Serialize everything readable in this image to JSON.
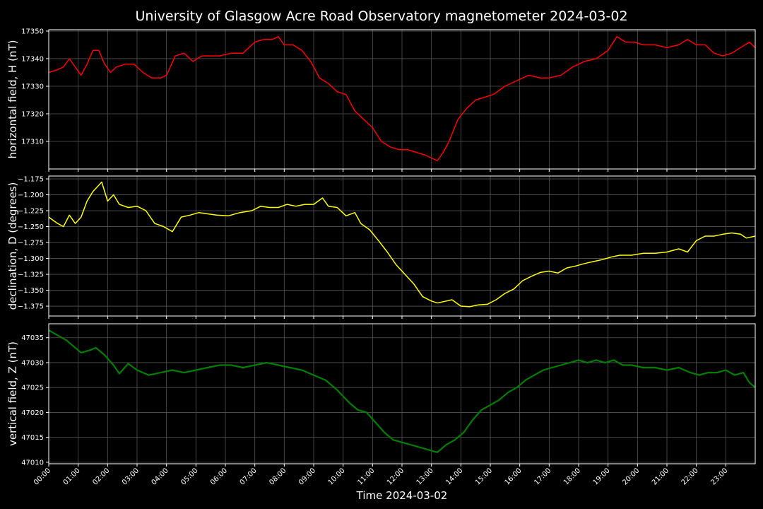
{
  "chart_data": {
    "type": "line",
    "title": "University of Glasgow Acre Road Observatory magnetometer 2024-03-02",
    "xlabel": "Time 2024-03-02",
    "x_unit": "hours",
    "x_ticks": [
      "00:00",
      "01:00",
      "02:00",
      "03:00",
      "04:00",
      "05:00",
      "06:00",
      "07:00",
      "08:00",
      "09:00",
      "10:00",
      "11:00",
      "12:00",
      "13:00",
      "14:00",
      "15:00",
      "16:00",
      "17:00",
      "18:00",
      "19:00",
      "20:00",
      "21:00",
      "22:00",
      "23:00"
    ],
    "xlim": [
      0,
      24
    ],
    "grid": true,
    "panels": [
      {
        "ylabel": "horizontal field, H (nT)",
        "color": "#ff0000",
        "ylim": [
          17300,
          17350.5
        ],
        "yticks": [
          17310,
          17320,
          17330,
          17340,
          17350
        ],
        "ytick_labels": [
          "17310",
          "17320",
          "17330",
          "17340",
          "17350"
        ],
        "x": [
          0,
          0.3,
          0.5,
          0.7,
          0.9,
          1.1,
          1.3,
          1.5,
          1.7,
          1.9,
          2.1,
          2.3,
          2.6,
          2.9,
          3.2,
          3.5,
          3.8,
          4.0,
          4.3,
          4.6,
          4.9,
          5.2,
          5.5,
          5.8,
          6.2,
          6.6,
          7.0,
          7.3,
          7.6,
          7.8,
          8.0,
          8.3,
          8.6,
          8.9,
          9.2,
          9.5,
          9.8,
          10.1,
          10.4,
          10.7,
          11.0,
          11.3,
          11.6,
          11.9,
          12.2,
          12.5,
          12.8,
          13.0,
          13.2,
          13.4,
          13.6,
          13.9,
          14.2,
          14.5,
          14.8,
          15.1,
          15.5,
          15.9,
          16.3,
          16.7,
          17.0,
          17.4,
          17.8,
          18.2,
          18.6,
          19.0,
          19.3,
          19.6,
          19.9,
          20.2,
          20.6,
          21.0,
          21.4,
          21.7,
          22.0,
          22.3,
          22.6,
          22.9,
          23.2,
          23.5,
          23.8,
          24.0
        ],
        "values": [
          17335,
          17336,
          17337,
          17340,
          17337,
          17334,
          17338,
          17343,
          17343,
          17338,
          17335,
          17337,
          17338,
          17338,
          17335,
          17333,
          17333,
          17334,
          17341,
          17342,
          17339,
          17341,
          17341,
          17341,
          17342,
          17342,
          17346,
          17347,
          17347,
          17348,
          17345,
          17345,
          17343,
          17339,
          17333,
          17331,
          17328,
          17327,
          17321,
          17318,
          17315,
          17310,
          17308,
          17307,
          17307,
          17306,
          17305,
          17304,
          17303,
          17306,
          17310,
          17318,
          17322,
          17325,
          17326,
          17327,
          17330,
          17332,
          17334,
          17333,
          17333,
          17334,
          17337,
          17339,
          17340,
          17343,
          17348,
          17346,
          17346,
          17345,
          17345,
          17344,
          17345,
          17347,
          17345,
          17345,
          17342,
          17341,
          17342,
          17344,
          17346,
          17344
        ]
      },
      {
        "ylabel": "declination, D (degrees)",
        "color": "#ffff00",
        "ylim": [
          -1.3905,
          -1.1705
        ],
        "yticks": [
          -1.375,
          -1.35,
          -1.325,
          -1.3,
          -1.275,
          -1.25,
          -1.225,
          -1.2,
          -1.175
        ],
        "ytick_labels": [
          "−1.375",
          "−1.350",
          "−1.325",
          "−1.300",
          "−1.275",
          "−1.250",
          "−1.225",
          "−1.200",
          "−1.175"
        ],
        "x": [
          0,
          0.3,
          0.5,
          0.7,
          0.9,
          1.1,
          1.3,
          1.5,
          1.8,
          2.0,
          2.2,
          2.4,
          2.7,
          3.0,
          3.3,
          3.6,
          3.9,
          4.2,
          4.5,
          4.8,
          5.1,
          5.4,
          5.7,
          6.1,
          6.5,
          6.9,
          7.2,
          7.5,
          7.8,
          8.1,
          8.4,
          8.7,
          9.0,
          9.3,
          9.5,
          9.8,
          10.1,
          10.4,
          10.6,
          10.9,
          11.2,
          11.5,
          11.8,
          12.1,
          12.4,
          12.7,
          13.0,
          13.2,
          13.4,
          13.7,
          14.0,
          14.3,
          14.6,
          14.9,
          15.2,
          15.5,
          15.8,
          16.1,
          16.4,
          16.7,
          17.0,
          17.3,
          17.6,
          17.9,
          18.2,
          18.5,
          18.8,
          19.1,
          19.4,
          19.8,
          20.2,
          20.6,
          21.0,
          21.4,
          21.7,
          22.0,
          22.3,
          22.6,
          22.9,
          23.2,
          23.5,
          23.7,
          24.0
        ],
        "values": [
          -1.235,
          -1.245,
          -1.25,
          -1.232,
          -1.245,
          -1.235,
          -1.21,
          -1.195,
          -1.18,
          -1.21,
          -1.2,
          -1.215,
          -1.22,
          -1.218,
          -1.225,
          -1.245,
          -1.25,
          -1.258,
          -1.235,
          -1.232,
          -1.228,
          -1.23,
          -1.232,
          -1.233,
          -1.228,
          -1.225,
          -1.218,
          -1.22,
          -1.22,
          -1.215,
          -1.218,
          -1.215,
          -1.215,
          -1.205,
          -1.218,
          -1.22,
          -1.233,
          -1.228,
          -1.245,
          -1.255,
          -1.272,
          -1.29,
          -1.31,
          -1.325,
          -1.34,
          -1.36,
          -1.367,
          -1.37,
          -1.368,
          -1.365,
          -1.375,
          -1.376,
          -1.373,
          -1.372,
          -1.365,
          -1.355,
          -1.348,
          -1.335,
          -1.328,
          -1.322,
          -1.32,
          -1.323,
          -1.315,
          -1.312,
          -1.308,
          -1.305,
          -1.302,
          -1.298,
          -1.295,
          -1.295,
          -1.292,
          -1.292,
          -1.29,
          -1.285,
          -1.29,
          -1.272,
          -1.265,
          -1.265,
          -1.262,
          -1.26,
          -1.262,
          -1.268,
          -1.265
        ]
      },
      {
        "ylabel": "vertical field, Z (nT)",
        "color": "#008000",
        "ylim": [
          47009.7,
          47037.8
        ],
        "yticks": [
          47010,
          47015,
          47020,
          47025,
          47030,
          47035
        ],
        "ytick_labels": [
          "47010",
          "47015",
          "47020",
          "47025",
          "47030",
          "47035"
        ],
        "x": [
          0,
          0.3,
          0.6,
          0.9,
          1.1,
          1.4,
          1.6,
          1.9,
          2.2,
          2.4,
          2.7,
          3.0,
          3.4,
          3.8,
          4.2,
          4.6,
          5.0,
          5.4,
          5.8,
          6.2,
          6.6,
          7.0,
          7.4,
          7.8,
          8.2,
          8.6,
          9.0,
          9.4,
          9.8,
          10.2,
          10.5,
          10.8,
          11.1,
          11.4,
          11.7,
          12.0,
          12.3,
          12.6,
          12.9,
          13.2,
          13.5,
          13.8,
          14.1,
          14.4,
          14.7,
          15.0,
          15.3,
          15.6,
          15.9,
          16.2,
          16.5,
          16.8,
          17.1,
          17.4,
          17.7,
          18.0,
          18.3,
          18.6,
          18.9,
          19.2,
          19.5,
          19.8,
          20.2,
          20.6,
          21.0,
          21.4,
          21.8,
          22.1,
          22.4,
          22.7,
          23.0,
          23.3,
          23.6,
          23.8,
          24.0
        ],
        "values": [
          47036.5,
          47035.5,
          47034.5,
          47033,
          47032,
          47032.5,
          47033,
          47031.5,
          47029.5,
          47027.8,
          47029.8,
          47028.5,
          47027.5,
          47028,
          47028.5,
          47028,
          47028.5,
          47029,
          47029.5,
          47029.5,
          47029,
          47029.5,
          47030,
          47029.5,
          47029,
          47028.5,
          47027.5,
          47026.5,
          47024.5,
          47022,
          47020.5,
          47020,
          47018,
          47016,
          47014.5,
          47014,
          47013.5,
          47013,
          47012.5,
          47012,
          47013.5,
          47014.5,
          47016,
          47018.5,
          47020.5,
          47021.5,
          47022.5,
          47024,
          47025,
          47026.5,
          47027.5,
          47028.5,
          47029,
          47029.5,
          47030,
          47030.5,
          47030,
          47030.5,
          47030,
          47030.5,
          47029.5,
          47029.5,
          47029,
          47029,
          47028.5,
          47029,
          47028,
          47027.5,
          47028,
          47028,
          47028.5,
          47027.5,
          47028,
          47026,
          47025
        ]
      }
    ]
  }
}
